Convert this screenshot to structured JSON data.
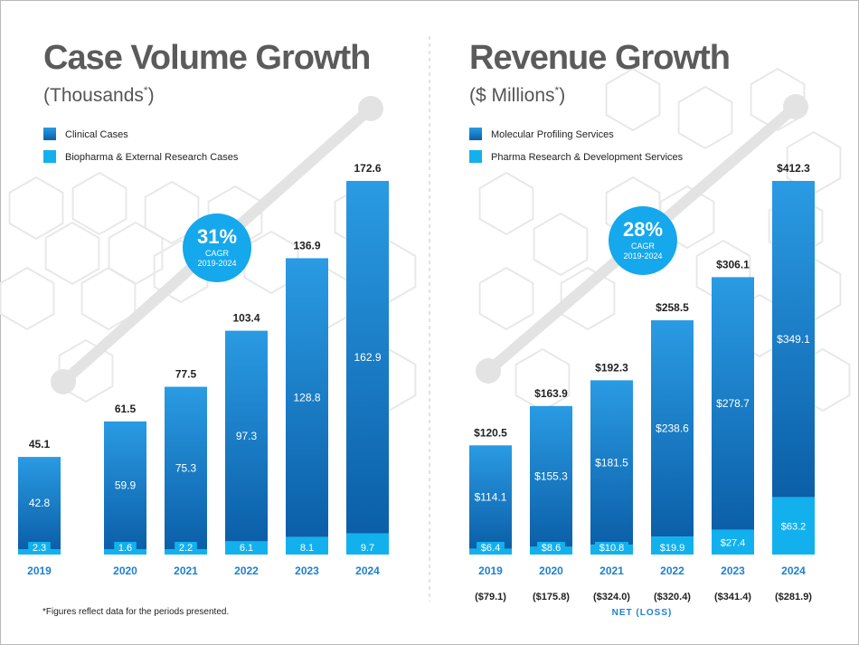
{
  "chart_data": [
    {
      "type": "bar",
      "stacked": true,
      "title": "Case Volume Growth",
      "subtitle": "(Thousands",
      "subtitle_mark": "*",
      "subtitle_close": ")",
      "legend": [
        "Clinical Cases",
        "Biopharma & External Research Cases"
      ],
      "categories": [
        "2019",
        "2020",
        "2021",
        "2022",
        "2023",
        "2024"
      ],
      "series": [
        {
          "name": "Biopharma & External Research Cases",
          "values": [
            2.3,
            1.6,
            2.2,
            6.1,
            8.1,
            9.7
          ],
          "labels": [
            "2.3",
            "1.6",
            "2.2",
            "6.1",
            "8.1",
            "9.7"
          ]
        },
        {
          "name": "Clinical Cases",
          "values": [
            42.8,
            59.9,
            75.3,
            97.3,
            128.8,
            162.9
          ],
          "labels": [
            "42.8",
            "59.9",
            "75.3",
            "97.3",
            "128.8",
            "162.9"
          ]
        }
      ],
      "totals": [
        45.1,
        61.5,
        77.5,
        103.4,
        136.9,
        172.6
      ],
      "total_labels": [
        "45.1",
        "61.5",
        "77.5",
        "103.4",
        "136.9",
        "172.6"
      ],
      "badge": {
        "value": "31%",
        "line1": "CAGR",
        "line2": "2019-2024"
      },
      "ylim": [
        0,
        180
      ],
      "xlabel": "",
      "ylabel": ""
    },
    {
      "type": "bar",
      "stacked": true,
      "title": "Revenue Growth",
      "subtitle": "($ Millions",
      "subtitle_mark": "*",
      "subtitle_close": ")",
      "legend": [
        "Molecular Profiling Services",
        "Pharma Research & Development Services"
      ],
      "categories": [
        "2019",
        "2020",
        "2021",
        "2022",
        "2023",
        "2024"
      ],
      "series": [
        {
          "name": "Pharma Research & Development Services",
          "values": [
            6.4,
            8.6,
            10.8,
            19.9,
            27.4,
            63.2
          ],
          "labels": [
            "$6.4",
            "$8.6",
            "$10.8",
            "$19.9",
            "$27.4",
            "$63.2"
          ]
        },
        {
          "name": "Molecular Profiling Services",
          "values": [
            114.1,
            155.3,
            181.5,
            238.6,
            278.7,
            349.1
          ],
          "labels": [
            "$114.1",
            "$155.3",
            "$181.5",
            "$238.6",
            "$278.7",
            "$349.1"
          ]
        }
      ],
      "totals": [
        120.5,
        163.9,
        192.3,
        258.5,
        306.1,
        412.3
      ],
      "total_labels": [
        "$120.5",
        "$163.9",
        "$192.3",
        "$258.5",
        "$306.1",
        "$412.3"
      ],
      "badge": {
        "value": "28%",
        "line1": "CAGR",
        "line2": "2019-2024"
      },
      "net_loss": [
        "($79.1)",
        "($175.8)",
        "($324.0)",
        "($320.4)",
        "($341.4)",
        "($281.9)"
      ],
      "net_loss_label": "NET (LOSS)",
      "ylim": [
        0,
        430
      ],
      "xlabel": "",
      "ylabel": ""
    }
  ],
  "colors": {
    "title": "#5b5b5b",
    "bar_dark_top": "#2a9be3",
    "bar_dark_bottom": "#0b5fa8",
    "bar_light": "#12b1ee",
    "year_label": "#1f7fd0",
    "net_loss": "#1f7fd0",
    "badge": "#15a8ec",
    "decor": "#e3e3e3",
    "hex": "#e8e8e8"
  },
  "footnote": "*Figures reflect data for the periods presented."
}
